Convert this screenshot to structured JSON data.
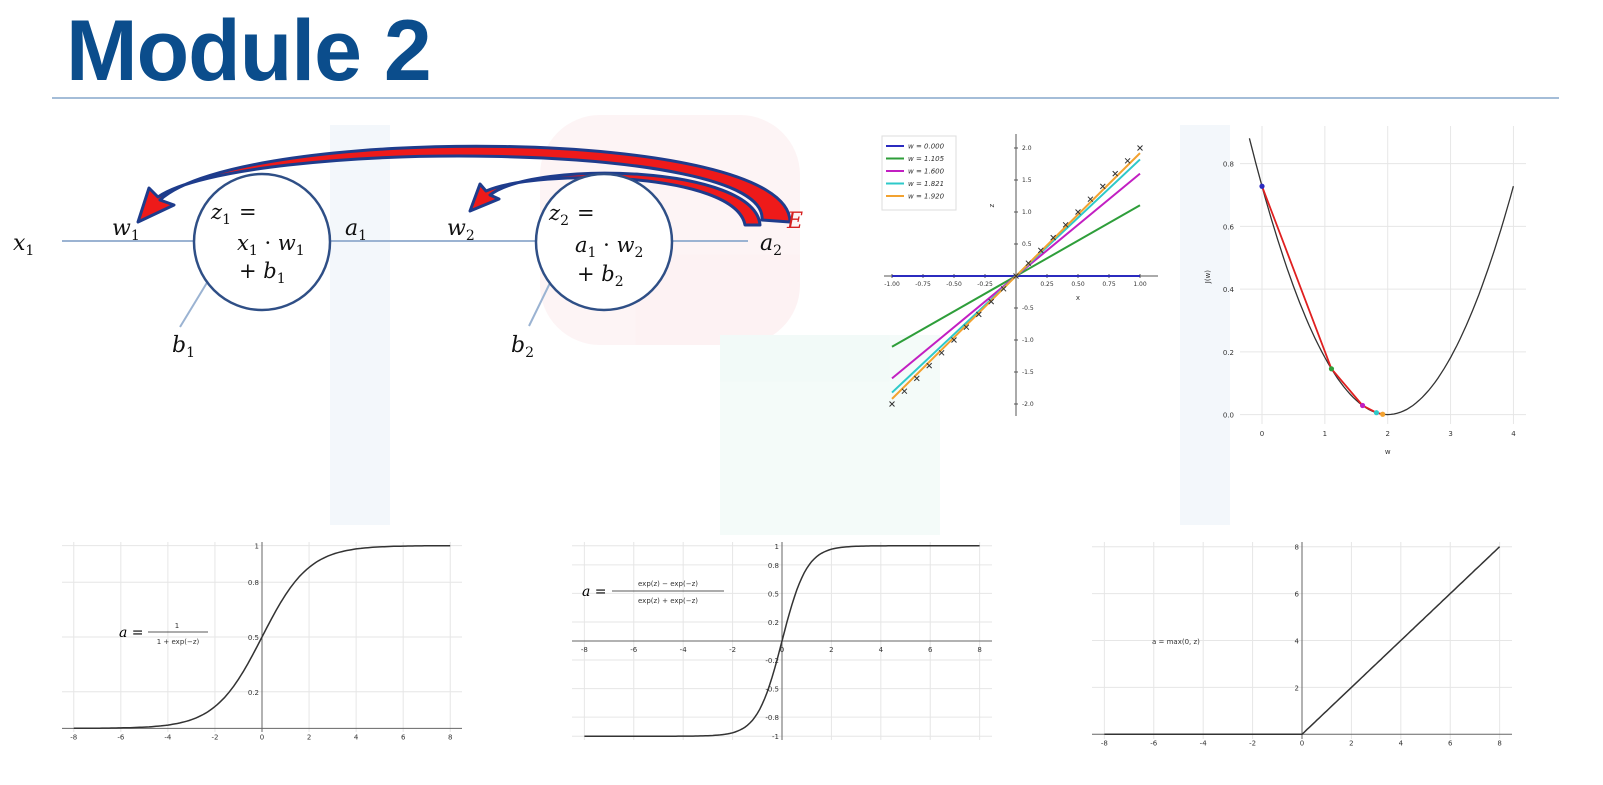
{
  "slide": {
    "title": "Module 2"
  },
  "network": {
    "x1": {
      "base": "x",
      "sub": "1"
    },
    "w1": {
      "base": "w",
      "sub": "1"
    },
    "b1": {
      "base": "b",
      "sub": "1"
    },
    "a1": {
      "base": "a",
      "sub": "1"
    },
    "w2": {
      "base": "w",
      "sub": "2"
    },
    "b2": {
      "base": "b",
      "sub": "2"
    },
    "a2": {
      "base": "a",
      "sub": "2"
    },
    "error_label": "E",
    "neuron1": {
      "z": "z",
      "zsub": "1",
      "eq": "=",
      "l2a": "x",
      "l2b": "1",
      "dot": " · ",
      "l2c": "w",
      "l2d": "1",
      "l3a": "+ b",
      "l3b": "1"
    },
    "neuron2": {
      "z": "z",
      "zsub": "2",
      "eq": "=",
      "l2a": "a",
      "l2b": "1",
      "dot": " · ",
      "l2c": "w",
      "l2d": "2",
      "l3a": "+ b",
      "l3b": "2"
    },
    "colors": {
      "line": "#9bb3d2",
      "circle": "#2f4f86",
      "arrow_fill": "#ee1a1a",
      "arrow_stroke": "#1e3c8c",
      "error": "#d62020"
    }
  },
  "chart_data": [
    {
      "id": "regression",
      "type": "line",
      "xlabel": "x",
      "ylabel": "z",
      "xlim": [
        -1.0,
        1.0
      ],
      "ylim": [
        -2.0,
        2.0
      ],
      "xticks": [
        -1.0,
        -0.75,
        -0.5,
        -0.25,
        0.25,
        0.5,
        0.75,
        1.0
      ],
      "xtick_labels": [
        "-1.00",
        "-0.75",
        "-0.50",
        "-0.25",
        "0.25",
        "0.50",
        "0.75",
        "1.00"
      ],
      "yticks": [
        -2.0,
        -1.5,
        -1.0,
        -0.5,
        0.5,
        1.0,
        1.5,
        2.0
      ],
      "ytick_labels": [
        "-2.0",
        "-1.5",
        "-1.0",
        "-0.5",
        "0.5",
        "1.0",
        "1.5",
        "2.0"
      ],
      "legend_position": "top-left",
      "series": [
        {
          "name": "w = 0.000",
          "slope": 0.0,
          "color": "#2b2bbf"
        },
        {
          "name": "w = 1.105",
          "slope": 1.105,
          "color": "#2e9e3a"
        },
        {
          "name": "w = 1.600",
          "slope": 1.6,
          "color": "#c21fc2"
        },
        {
          "name": "w = 1.821",
          "slope": 1.821,
          "color": "#2ec9c9"
        },
        {
          "name": "w = 1.920",
          "slope": 1.92,
          "color": "#f2a230"
        }
      ],
      "points": {
        "x": [
          -1.0,
          -0.9,
          -0.8,
          -0.7,
          -0.6,
          -0.5,
          -0.4,
          -0.3,
          -0.2,
          -0.1,
          0.0,
          0.1,
          0.2,
          0.3,
          0.4,
          0.5,
          0.6,
          0.7,
          0.8,
          0.9,
          1.0
        ],
        "y": [
          -2.0,
          -1.8,
          -1.6,
          -1.4,
          -1.2,
          -1.0,
          -0.8,
          -0.6,
          -0.4,
          -0.2,
          0.0,
          0.2,
          0.4,
          0.6,
          0.8,
          1.0,
          1.2,
          1.4,
          1.6,
          1.8,
          2.0
        ],
        "marker": "x"
      }
    },
    {
      "id": "cost",
      "type": "line",
      "xlabel": "w",
      "ylabel": "J(w)",
      "xlim": [
        -0.35,
        4.2
      ],
      "ylim": [
        -0.03,
        0.92
      ],
      "xticks": [
        0,
        1,
        2,
        3,
        4
      ],
      "xtick_labels": [
        "0",
        "1",
        "2",
        "3",
        "4"
      ],
      "yticks": [
        0.0,
        0.2,
        0.4,
        0.6,
        0.8
      ],
      "ytick_labels": [
        "0.0",
        "0.2",
        "0.4",
        "0.6",
        "0.8"
      ],
      "curve": {
        "formula": "J(w) = 0.182*(w-2)^2",
        "color": "#333333"
      },
      "path": {
        "w": [
          0.0,
          1.105,
          1.6,
          1.821,
          1.92
        ],
        "J": [
          0.728,
          0.146,
          0.029,
          0.006,
          0.001
        ],
        "color": "#e02020",
        "marker_colors": [
          "#2b2bbf",
          "#2e9e3a",
          "#c21fc2",
          "#2ec9c9",
          "#f2a230"
        ]
      }
    },
    {
      "id": "sigmoid",
      "type": "line",
      "formula_lhs": "a =",
      "formula_num": "1",
      "formula_den": "1 + exp(−z)",
      "xlim": [
        -8.5,
        8.5
      ],
      "ylim": [
        -0.02,
        1.02
      ],
      "xticks": [
        -8,
        -6,
        -4,
        -2,
        0,
        2,
        4,
        6,
        8
      ],
      "xtick_labels": [
        "-8",
        "-6",
        "-4",
        "-2",
        "0",
        "2",
        "4",
        "6",
        "8"
      ],
      "yticks": [
        0.2,
        0.5,
        0.8,
        1.0
      ],
      "ytick_labels": [
        "0.2",
        "0.5",
        "0.8",
        "1"
      ],
      "function": "sigmoid"
    },
    {
      "id": "tanh",
      "type": "line",
      "formula_lhs": "a =",
      "formula_num": "exp(z) − exp(−z)",
      "formula_den": "exp(z) + exp(−z)",
      "xlim": [
        -8.5,
        8.5
      ],
      "ylim": [
        -1.04,
        1.04
      ],
      "xticks": [
        -8,
        -6,
        -4,
        -2,
        0,
        2,
        4,
        6,
        8
      ],
      "xtick_labels": [
        "-8",
        "-6",
        "-4",
        "-2",
        "0",
        "2",
        "4",
        "6",
        "8"
      ],
      "yticks": [
        -1.0,
        -0.8,
        -0.5,
        -0.2,
        0.2,
        0.5,
        0.8,
        1.0
      ],
      "ytick_labels": [
        "-1",
        "-0.8",
        "-0.5",
        "-0.2",
        "0.2",
        "0.5",
        "0.8",
        "1"
      ],
      "function": "tanh"
    },
    {
      "id": "relu",
      "type": "line",
      "formula": "a = max(0, z)",
      "xlim": [
        -8.5,
        8.5
      ],
      "ylim": [
        -0.2,
        8.2
      ],
      "xticks": [
        -8,
        -6,
        -4,
        -2,
        0,
        2,
        4,
        6,
        8
      ],
      "xtick_labels": [
        "-8",
        "-6",
        "-4",
        "-2",
        "0",
        "2",
        "4",
        "6",
        "8"
      ],
      "yticks": [
        2,
        4,
        6,
        8
      ],
      "ytick_labels": [
        "2",
        "4",
        "6",
        "8"
      ],
      "function": "relu"
    }
  ]
}
